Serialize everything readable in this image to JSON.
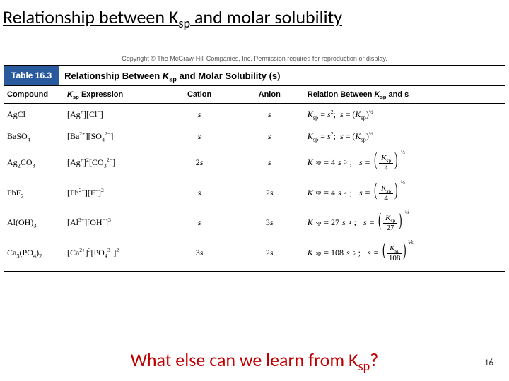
{
  "title_pre": "Relationship between K",
  "title_sub": "sp",
  "title_post": " and molar solubility",
  "copyright": "Copyright © The McGraw-Hill Companies, Inc. Permission required for reproduction or display.",
  "table_badge": "Table 16.3",
  "table_title_html": "Relationship Between <i>K</i><sub>sp</sub> and Molar Solubility (s)",
  "headers": {
    "compound": "Compound",
    "expr_html": "<i>K</i><sub>sp</sub> Expression",
    "cation": "Cation",
    "anion": "Anion",
    "rel_html": "Relation Between <i>K</i><sub>sp</sub> and s"
  },
  "rows": [
    {
      "compound_html": "AgCl",
      "expr_html": "[Ag<sup>+</sup>][Cl<sup>−</sup>]",
      "cation_html": "<i>s</i>",
      "anion_html": "<i>s</i>",
      "rel_eq_html": "<i>K</i><sub>sp</sub> = <i>s</i><sup>2</sup>; &nbsp;<i>s</i> = (<i>K</i><sub>sp</sub>)<sup>½</sup>",
      "frac": null
    },
    {
      "compound_html": "BaSO<sub>4</sub>",
      "expr_html": "[Ba<sup>2+</sup>][SO<sub>4</sub><sup>2−</sup>]",
      "cation_html": "<i>s</i>",
      "anion_html": "<i>s</i>",
      "rel_eq_html": "<i>K</i><sub>sp</sub> = <i>s</i><sup>2</sup>; &nbsp;<i>s</i> = (<i>K</i><sub>sp</sub>)<sup>½</sup>",
      "frac": null
    },
    {
      "compound_html": "Ag<sub>2</sub>CO<sub>3</sub>",
      "expr_html": "[Ag<sup>+</sup>]<sup>2</sup>[CO<sub>3</sub><sup>2−</sup>]",
      "cation_html": "2<i>s</i>",
      "anion_html": "<i>s</i>",
      "rel_eq_html": "<i>K</i><sub>sp</sub> = 4<i>s</i><sup>3</sup>; &nbsp;<i>s</i> = ",
      "frac": {
        "num_html": "<i>K</i><sub>sp</sub>",
        "den": "4",
        "exp": "⅓"
      }
    },
    {
      "compound_html": "PbF<sub>2</sub>",
      "expr_html": "[Pb<sup>2+</sup>][F<sup>−</sup>]<sup>2</sup>",
      "cation_html": "<i>s</i>",
      "anion_html": "2<i>s</i>",
      "rel_eq_html": "<i>K</i><sub>sp</sub> = 4<i>s</i><sup>3</sup>; &nbsp;<i>s</i> = ",
      "frac": {
        "num_html": "<i>K</i><sub>sp</sub>",
        "den": "4",
        "exp": "⅓"
      }
    },
    {
      "compound_html": "Al(OH)<sub>3</sub>",
      "expr_html": "[Al<sup>3+</sup>][OH<sup>−</sup>]<sup>3</sup>",
      "cation_html": "<i>s</i>",
      "anion_html": "3<i>s</i>",
      "rel_eq_html": "<i>K</i><sub>sp</sub> = 27<i>s</i><sup>4</sup>; &nbsp;<i>s</i> = ",
      "frac": {
        "num_html": "<i>K</i><sub>sp</sub>",
        "den": "27",
        "exp": "¼"
      }
    },
    {
      "compound_html": "Ca<sub>3</sub>(PO<sub>4</sub>)<sub>2</sub>",
      "expr_html": "[Ca<sup>2+</sup>]<sup>3</sup>[PO<sub>4</sub><sup>3−</sup>]<sup>2</sup>",
      "cation_html": "3<i>s</i>",
      "anion_html": "2<i>s</i>",
      "rel_eq_html": "<i>K</i><sub>sp</sub> = 108<i>s</i><sup>5</sup>; &nbsp;<i>s</i> = ",
      "frac": {
        "num_html": "<i>K</i><sub>sp</sub>",
        "den": "108",
        "exp": "⅕"
      }
    }
  ],
  "question_pre": "What else can we learn from K",
  "question_sub": "sp",
  "question_post": "?",
  "page_number": "16",
  "colors": {
    "title": "#000000",
    "badge_bg": "#2a5a9e",
    "question": "#c00000"
  }
}
